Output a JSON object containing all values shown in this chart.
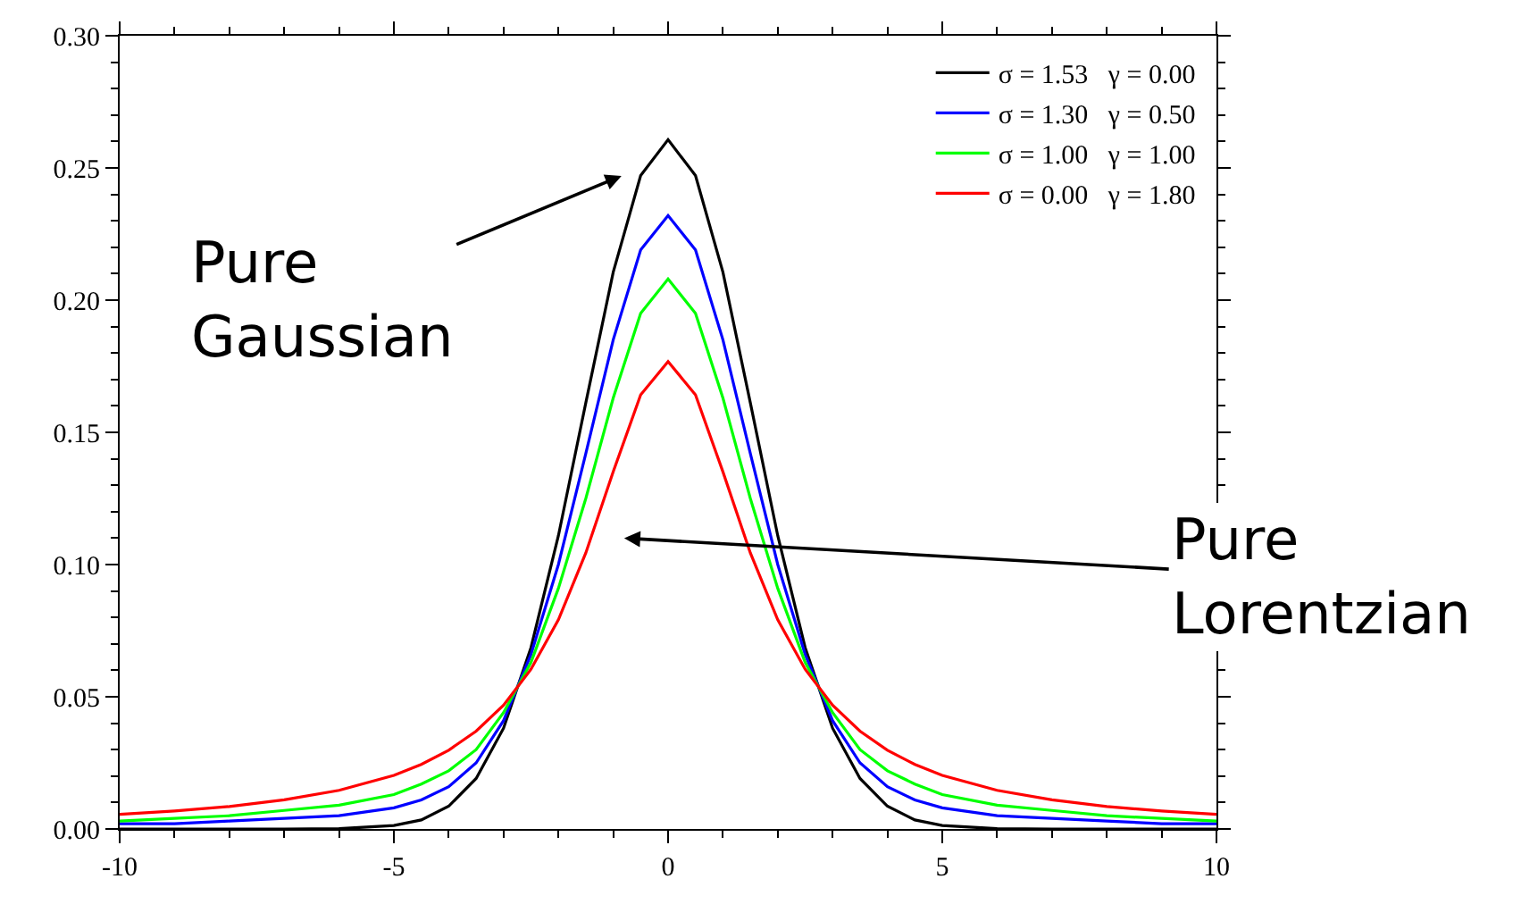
{
  "chart_data": {
    "type": "line",
    "x": [
      -10,
      -9,
      -8,
      -7,
      -6,
      -5,
      -4.5,
      -4,
      -3.5,
      -3,
      -2.5,
      -2,
      -1.5,
      -1,
      -0.5,
      0,
      0.5,
      1,
      1.5,
      2,
      2.5,
      3,
      3.5,
      4,
      4.5,
      5,
      6,
      7,
      8,
      9,
      10
    ],
    "series": [
      {
        "name": "σ = 1.53   γ = 0.00",
        "color": "#000000",
        "values": [
          0,
          0,
          0,
          0,
          0.0001,
          0.0013,
          0.0034,
          0.0086,
          0.0191,
          0.0381,
          0.0686,
          0.1109,
          0.1612,
          0.2106,
          0.2471,
          0.2607,
          0.2471,
          0.2106,
          0.1612,
          0.1109,
          0.0686,
          0.0381,
          0.0191,
          0.0086,
          0.0034,
          0.0013,
          0.0001,
          0,
          0,
          0,
          0
        ]
      },
      {
        "name": "σ = 1.30   γ = 0.50",
        "color": "#0000ff",
        "values": [
          0.002,
          0.002,
          0.003,
          0.004,
          0.005,
          0.008,
          0.011,
          0.016,
          0.025,
          0.041,
          0.066,
          0.1,
          0.142,
          0.185,
          0.219,
          0.232,
          0.219,
          0.185,
          0.142,
          0.1,
          0.066,
          0.041,
          0.025,
          0.016,
          0.011,
          0.008,
          0.005,
          0.004,
          0.003,
          0.002,
          0.002
        ]
      },
      {
        "name": "σ = 1.00   γ = 1.00",
        "color": "#00ff00",
        "values": [
          0.003,
          0.004,
          0.005,
          0.007,
          0.009,
          0.013,
          0.017,
          0.022,
          0.03,
          0.044,
          0.063,
          0.091,
          0.125,
          0.163,
          0.195,
          0.208,
          0.195,
          0.163,
          0.125,
          0.091,
          0.063,
          0.044,
          0.03,
          0.022,
          0.017,
          0.013,
          0.009,
          0.007,
          0.005,
          0.004,
          0.003
        ]
      },
      {
        "name": "σ = 0.00   γ = 1.80",
        "color": "#ff0000",
        "values": [
          0.0055,
          0.0068,
          0.0085,
          0.011,
          0.0146,
          0.0203,
          0.0244,
          0.0298,
          0.037,
          0.0468,
          0.0604,
          0.0791,
          0.1044,
          0.1351,
          0.1642,
          0.1768,
          0.1642,
          0.1351,
          0.1044,
          0.0791,
          0.0604,
          0.0468,
          0.037,
          0.0298,
          0.0244,
          0.0203,
          0.0146,
          0.011,
          0.0085,
          0.0068,
          0.0055
        ]
      }
    ],
    "xlim": [
      -10,
      10
    ],
    "xticks": [
      -10,
      {
        "value": -9,
        "label": null
      },
      {
        "value": -8,
        "label": null
      },
      {
        "value": -7,
        "label": null
      },
      {
        "value": -6,
        "label": null
      },
      -5,
      {
        "value": -4,
        "label": null
      },
      {
        "value": -3,
        "label": null
      },
      {
        "value": -2,
        "label": null
      },
      {
        "value": -1,
        "label": null
      },
      0,
      {
        "value": 1,
        "label": null
      },
      {
        "value": 2,
        "label": null
      },
      {
        "value": 3,
        "label": null
      },
      {
        "value": 4,
        "label": null
      },
      5,
      {
        "value": 6,
        "label": null
      },
      {
        "value": 7,
        "label": null
      },
      {
        "value": 8,
        "label": null
      },
      {
        "value": 9,
        "label": null
      },
      10
    ],
    "ylim": [
      0,
      0.3
    ],
    "yticks": [
      {
        "value": 0,
        "label": "0.00"
      },
      {
        "value": 0.01,
        "label": null
      },
      {
        "value": 0.02,
        "label": null
      },
      {
        "value": 0.03,
        "label": null
      },
      {
        "value": 0.04,
        "label": null
      },
      {
        "value": 0.05,
        "label": "0.05"
      },
      {
        "value": 0.06,
        "label": null
      },
      {
        "value": 0.07,
        "label": null
      },
      {
        "value": 0.08,
        "label": null
      },
      {
        "value": 0.09,
        "label": null
      },
      {
        "value": 0.1,
        "label": "0.10"
      },
      {
        "value": 0.11,
        "label": null
      },
      {
        "value": 0.12,
        "label": null
      },
      {
        "value": 0.13,
        "label": null
      },
      {
        "value": 0.14,
        "label": null
      },
      {
        "value": 0.15,
        "label": "0.15"
      },
      {
        "value": 0.16,
        "label": null
      },
      {
        "value": 0.17,
        "label": null
      },
      {
        "value": 0.18,
        "label": null
      },
      {
        "value": 0.19,
        "label": null
      },
      {
        "value": 0.2,
        "label": "0.20"
      },
      {
        "value": 0.21,
        "label": null
      },
      {
        "value": 0.22,
        "label": null
      },
      {
        "value": 0.23,
        "label": null
      },
      {
        "value": 0.24,
        "label": null
      },
      {
        "value": 0.25,
        "label": "0.25"
      },
      {
        "value": 0.26,
        "label": null
      },
      {
        "value": 0.27,
        "label": null
      },
      {
        "value": 0.28,
        "label": null
      },
      {
        "value": 0.29,
        "label": null
      },
      {
        "value": 0.3,
        "label": "0.30"
      }
    ],
    "annotations": [
      "Pure\nGaussian",
      "Pure\nLorentzian"
    ],
    "legend": "top right",
    "marker": "none",
    "line_style": "solid"
  }
}
